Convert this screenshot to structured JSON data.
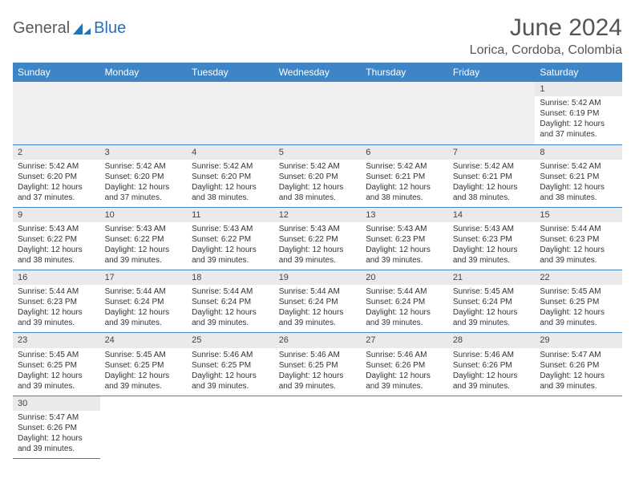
{
  "brand": {
    "part1": "General",
    "part2": "Blue"
  },
  "title": "June 2024",
  "location": "Lorica, Cordoba, Colombia",
  "colors": {
    "header_bg": "#3d85c6",
    "header_text": "#ffffff",
    "cell_border": "#3d85c6",
    "daynum_bg": "#eaeaea",
    "brand_gray": "#5a5a5a",
    "brand_blue": "#2672b8"
  },
  "weekdays": [
    "Sunday",
    "Monday",
    "Tuesday",
    "Wednesday",
    "Thursday",
    "Friday",
    "Saturday"
  ],
  "weeks": [
    [
      null,
      null,
      null,
      null,
      null,
      null,
      {
        "n": "1",
        "sunrise": "Sunrise: 5:42 AM",
        "sunset": "Sunset: 6:19 PM",
        "daylight": "Daylight: 12 hours and 37 minutes."
      }
    ],
    [
      {
        "n": "2",
        "sunrise": "Sunrise: 5:42 AM",
        "sunset": "Sunset: 6:20 PM",
        "daylight": "Daylight: 12 hours and 37 minutes."
      },
      {
        "n": "3",
        "sunrise": "Sunrise: 5:42 AM",
        "sunset": "Sunset: 6:20 PM",
        "daylight": "Daylight: 12 hours and 37 minutes."
      },
      {
        "n": "4",
        "sunrise": "Sunrise: 5:42 AM",
        "sunset": "Sunset: 6:20 PM",
        "daylight": "Daylight: 12 hours and 38 minutes."
      },
      {
        "n": "5",
        "sunrise": "Sunrise: 5:42 AM",
        "sunset": "Sunset: 6:20 PM",
        "daylight": "Daylight: 12 hours and 38 minutes."
      },
      {
        "n": "6",
        "sunrise": "Sunrise: 5:42 AM",
        "sunset": "Sunset: 6:21 PM",
        "daylight": "Daylight: 12 hours and 38 minutes."
      },
      {
        "n": "7",
        "sunrise": "Sunrise: 5:42 AM",
        "sunset": "Sunset: 6:21 PM",
        "daylight": "Daylight: 12 hours and 38 minutes."
      },
      {
        "n": "8",
        "sunrise": "Sunrise: 5:42 AM",
        "sunset": "Sunset: 6:21 PM",
        "daylight": "Daylight: 12 hours and 38 minutes."
      }
    ],
    [
      {
        "n": "9",
        "sunrise": "Sunrise: 5:43 AM",
        "sunset": "Sunset: 6:22 PM",
        "daylight": "Daylight: 12 hours and 38 minutes."
      },
      {
        "n": "10",
        "sunrise": "Sunrise: 5:43 AM",
        "sunset": "Sunset: 6:22 PM",
        "daylight": "Daylight: 12 hours and 39 minutes."
      },
      {
        "n": "11",
        "sunrise": "Sunrise: 5:43 AM",
        "sunset": "Sunset: 6:22 PM",
        "daylight": "Daylight: 12 hours and 39 minutes."
      },
      {
        "n": "12",
        "sunrise": "Sunrise: 5:43 AM",
        "sunset": "Sunset: 6:22 PM",
        "daylight": "Daylight: 12 hours and 39 minutes."
      },
      {
        "n": "13",
        "sunrise": "Sunrise: 5:43 AM",
        "sunset": "Sunset: 6:23 PM",
        "daylight": "Daylight: 12 hours and 39 minutes."
      },
      {
        "n": "14",
        "sunrise": "Sunrise: 5:43 AM",
        "sunset": "Sunset: 6:23 PM",
        "daylight": "Daylight: 12 hours and 39 minutes."
      },
      {
        "n": "15",
        "sunrise": "Sunrise: 5:44 AM",
        "sunset": "Sunset: 6:23 PM",
        "daylight": "Daylight: 12 hours and 39 minutes."
      }
    ],
    [
      {
        "n": "16",
        "sunrise": "Sunrise: 5:44 AM",
        "sunset": "Sunset: 6:23 PM",
        "daylight": "Daylight: 12 hours and 39 minutes."
      },
      {
        "n": "17",
        "sunrise": "Sunrise: 5:44 AM",
        "sunset": "Sunset: 6:24 PM",
        "daylight": "Daylight: 12 hours and 39 minutes."
      },
      {
        "n": "18",
        "sunrise": "Sunrise: 5:44 AM",
        "sunset": "Sunset: 6:24 PM",
        "daylight": "Daylight: 12 hours and 39 minutes."
      },
      {
        "n": "19",
        "sunrise": "Sunrise: 5:44 AM",
        "sunset": "Sunset: 6:24 PM",
        "daylight": "Daylight: 12 hours and 39 minutes."
      },
      {
        "n": "20",
        "sunrise": "Sunrise: 5:44 AM",
        "sunset": "Sunset: 6:24 PM",
        "daylight": "Daylight: 12 hours and 39 minutes."
      },
      {
        "n": "21",
        "sunrise": "Sunrise: 5:45 AM",
        "sunset": "Sunset: 6:24 PM",
        "daylight": "Daylight: 12 hours and 39 minutes."
      },
      {
        "n": "22",
        "sunrise": "Sunrise: 5:45 AM",
        "sunset": "Sunset: 6:25 PM",
        "daylight": "Daylight: 12 hours and 39 minutes."
      }
    ],
    [
      {
        "n": "23",
        "sunrise": "Sunrise: 5:45 AM",
        "sunset": "Sunset: 6:25 PM",
        "daylight": "Daylight: 12 hours and 39 minutes."
      },
      {
        "n": "24",
        "sunrise": "Sunrise: 5:45 AM",
        "sunset": "Sunset: 6:25 PM",
        "daylight": "Daylight: 12 hours and 39 minutes."
      },
      {
        "n": "25",
        "sunrise": "Sunrise: 5:46 AM",
        "sunset": "Sunset: 6:25 PM",
        "daylight": "Daylight: 12 hours and 39 minutes."
      },
      {
        "n": "26",
        "sunrise": "Sunrise: 5:46 AM",
        "sunset": "Sunset: 6:25 PM",
        "daylight": "Daylight: 12 hours and 39 minutes."
      },
      {
        "n": "27",
        "sunrise": "Sunrise: 5:46 AM",
        "sunset": "Sunset: 6:26 PM",
        "daylight": "Daylight: 12 hours and 39 minutes."
      },
      {
        "n": "28",
        "sunrise": "Sunrise: 5:46 AM",
        "sunset": "Sunset: 6:26 PM",
        "daylight": "Daylight: 12 hours and 39 minutes."
      },
      {
        "n": "29",
        "sunrise": "Sunrise: 5:47 AM",
        "sunset": "Sunset: 6:26 PM",
        "daylight": "Daylight: 12 hours and 39 minutes."
      }
    ],
    [
      {
        "n": "30",
        "sunrise": "Sunrise: 5:47 AM",
        "sunset": "Sunset: 6:26 PM",
        "daylight": "Daylight: 12 hours and 39 minutes."
      },
      null,
      null,
      null,
      null,
      null,
      null
    ]
  ]
}
